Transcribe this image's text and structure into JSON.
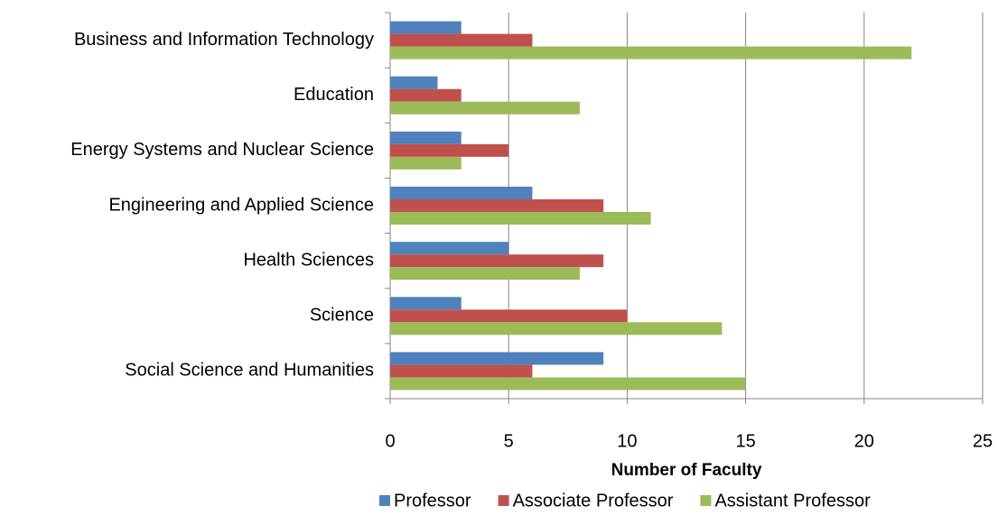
{
  "chart_data": {
    "type": "bar",
    "orientation": "horizontal",
    "categories": [
      "Business and Information Technology",
      "Education",
      "Energy Systems and Nuclear Science",
      "Engineering and Applied Science",
      "Health Sciences",
      "Science",
      "Social Science and Humanities"
    ],
    "series": [
      {
        "name": "Professor",
        "color": "#4f81bd",
        "values": [
          3,
          2,
          3,
          6,
          5,
          3,
          9
        ]
      },
      {
        "name": "Associate Professor",
        "color": "#c0504d",
        "values": [
          6,
          3,
          5,
          9,
          9,
          10,
          6
        ]
      },
      {
        "name": "Assistant Professor",
        "color": "#9bbb59",
        "values": [
          22,
          8,
          3,
          11,
          8,
          14,
          15
        ]
      }
    ],
    "x_label": "Number of Faculty",
    "xlim": [
      0,
      25
    ],
    "xticks": [
      0,
      5,
      10,
      15,
      20,
      25
    ],
    "grid": true,
    "legend": "bottom"
  }
}
